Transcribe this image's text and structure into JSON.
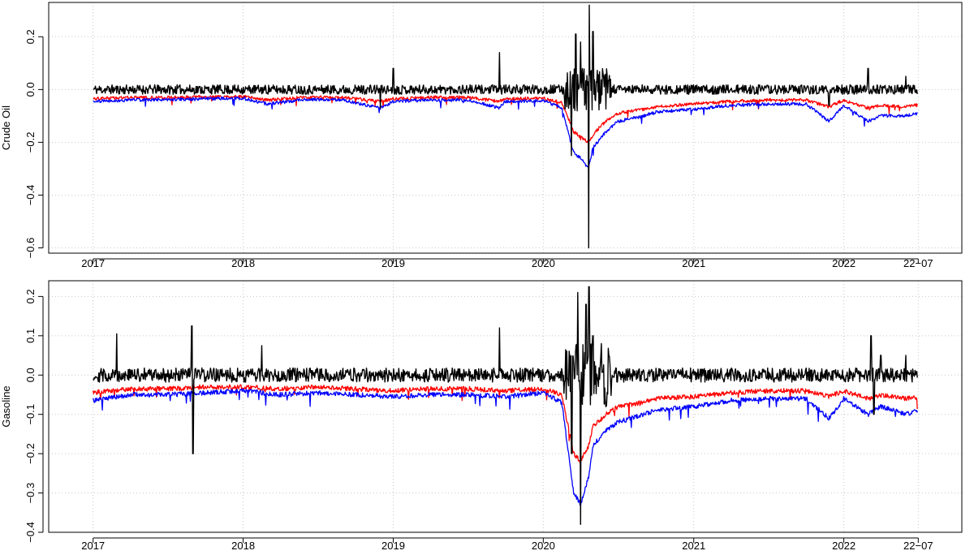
{
  "chart_data": [
    {
      "type": "line",
      "title": "",
      "ylabel": "Crude Oil",
      "xlabel": "",
      "ylim": [
        -0.62,
        0.33
      ],
      "xlim": [
        "2016-09-15",
        "2022-10-15"
      ],
      "y_ticks": [
        -0.6,
        -0.4,
        -0.2,
        0.0,
        0.2
      ],
      "y_tick_labels": [
        "−0.6",
        "−0.4",
        "−0.2",
        "0.0",
        "0.2"
      ],
      "x_ticks": [
        "2017-01-01",
        "2018-01-01",
        "2019-01-01",
        "2020-01-01",
        "2021-01-01",
        "2022-01-01",
        "2022-07-01"
      ],
      "x_tick_labels": [
        "2017",
        "2018",
        "2019",
        "2020",
        "2021",
        "2022",
        "22−07"
      ],
      "grid": true,
      "series": [
        {
          "color": "#000000",
          "style": "returns",
          "x": [
            "2017-01-01",
            "2017-04-01",
            "2017-07-01",
            "2017-10-01",
            "2018-01-01",
            "2018-04-01",
            "2018-07-01",
            "2018-10-01",
            "2018-12-01",
            "2019-01-01",
            "2019-04-01",
            "2019-07-01",
            "2019-09-16",
            "2019-10-01",
            "2020-01-01",
            "2020-03-09",
            "2020-03-20",
            "2020-04-01",
            "2020-04-20",
            "2020-04-22",
            "2020-05-01",
            "2020-06-01",
            "2020-07-01",
            "2020-10-01",
            "2021-01-01",
            "2021-04-01",
            "2021-07-01",
            "2021-10-01",
            "2021-11-26",
            "2022-01-01",
            "2022-03-01",
            "2022-04-01",
            "2022-06-01",
            "2022-06-30"
          ],
          "y": [
            0.0,
            0.01,
            0.0,
            0.005,
            0.0,
            -0.01,
            0.01,
            -0.005,
            -0.07,
            0.08,
            0.0,
            0.01,
            0.14,
            0.0,
            0.0,
            -0.25,
            0.21,
            0.18,
            -0.6,
            0.32,
            0.22,
            0.0,
            0.0,
            0.01,
            0.0,
            0.005,
            0.0,
            0.0,
            -0.06,
            0.0,
            0.08,
            -0.04,
            0.05,
            0.02
          ]
        },
        {
          "color": "#ff0000",
          "style": "smooth",
          "x": [
            "2017-01-01",
            "2017-04-01",
            "2017-07-01",
            "2017-10-01",
            "2018-01-01",
            "2018-03-01",
            "2018-06-01",
            "2018-09-01",
            "2018-12-01",
            "2019-01-01",
            "2019-04-01",
            "2019-07-01",
            "2019-09-16",
            "2019-10-01",
            "2020-01-01",
            "2020-02-15",
            "2020-03-15",
            "2020-04-01",
            "2020-04-20",
            "2020-05-01",
            "2020-06-01",
            "2020-07-01",
            "2020-09-01",
            "2020-10-01",
            "2021-01-01",
            "2021-04-01",
            "2021-07-01",
            "2021-10-01",
            "2021-11-26",
            "2022-01-01",
            "2022-03-01",
            "2022-04-01",
            "2022-06-01",
            "2022-06-30"
          ],
          "y": [
            -0.035,
            -0.03,
            -0.03,
            -0.028,
            -0.027,
            -0.04,
            -0.03,
            -0.03,
            -0.045,
            -0.035,
            -0.03,
            -0.03,
            -0.045,
            -0.035,
            -0.033,
            -0.05,
            -0.16,
            -0.18,
            -0.2,
            -0.17,
            -0.12,
            -0.09,
            -0.075,
            -0.065,
            -0.055,
            -0.045,
            -0.04,
            -0.04,
            -0.065,
            -0.04,
            -0.07,
            -0.06,
            -0.065,
            -0.058
          ]
        },
        {
          "color": "#0000ff",
          "style": "smooth",
          "x": [
            "2017-01-01",
            "2017-04-01",
            "2017-07-01",
            "2017-10-01",
            "2018-01-01",
            "2018-03-01",
            "2018-06-01",
            "2018-09-01",
            "2018-12-01",
            "2019-01-01",
            "2019-04-01",
            "2019-07-01",
            "2019-09-16",
            "2019-10-01",
            "2020-01-01",
            "2020-02-15",
            "2020-03-15",
            "2020-04-01",
            "2020-04-20",
            "2020-05-01",
            "2020-06-01",
            "2020-07-01",
            "2020-09-01",
            "2020-10-01",
            "2021-01-01",
            "2021-04-01",
            "2021-07-01",
            "2021-10-01",
            "2021-11-26",
            "2022-01-01",
            "2022-03-01",
            "2022-04-01",
            "2022-06-01",
            "2022-06-30"
          ],
          "y": [
            -0.045,
            -0.04,
            -0.038,
            -0.035,
            -0.033,
            -0.055,
            -0.038,
            -0.04,
            -0.07,
            -0.045,
            -0.04,
            -0.04,
            -0.07,
            -0.045,
            -0.042,
            -0.07,
            -0.24,
            -0.26,
            -0.3,
            -0.22,
            -0.16,
            -0.12,
            -0.1,
            -0.085,
            -0.075,
            -0.06,
            -0.055,
            -0.055,
            -0.12,
            -0.06,
            -0.12,
            -0.1,
            -0.1,
            -0.09
          ]
        }
      ]
    },
    {
      "type": "line",
      "title": "",
      "ylabel": "Gasoline",
      "xlabel": "",
      "ylim": [
        -0.4,
        0.24
      ],
      "xlim": [
        "2016-09-15",
        "2022-10-15"
      ],
      "y_ticks": [
        -0.4,
        -0.3,
        -0.2,
        -0.1,
        0.0,
        0.1,
        0.2
      ],
      "y_tick_labels": [
        "−0.4",
        "−0.3",
        "−0.2",
        "−0.1",
        "0.0",
        "0.1",
        "0.2"
      ],
      "x_ticks": [
        "2017-01-01",
        "2018-01-01",
        "2019-01-01",
        "2020-01-01",
        "2021-01-01",
        "2022-01-01",
        "2022-07-01"
      ],
      "x_tick_labels": [
        "2017",
        "2018",
        "2019",
        "2020",
        "2021",
        "2022",
        "22−07"
      ],
      "grid": true,
      "series": [
        {
          "color": "#000000",
          "style": "returns",
          "x": [
            "2017-01-01",
            "2017-02-27",
            "2017-04-01",
            "2017-07-01",
            "2017-08-29",
            "2017-09-01",
            "2017-10-01",
            "2018-01-01",
            "2018-02-15",
            "2018-04-01",
            "2018-07-01",
            "2018-10-01",
            "2019-01-01",
            "2019-04-01",
            "2019-07-01",
            "2019-09-16",
            "2019-10-01",
            "2020-01-01",
            "2020-03-10",
            "2020-03-25",
            "2020-04-01",
            "2020-04-14",
            "2020-04-21",
            "2020-05-01",
            "2020-06-01",
            "2020-07-01",
            "2020-10-01",
            "2021-01-01",
            "2021-04-01",
            "2021-07-01",
            "2021-10-01",
            "2021-11-26",
            "2022-01-01",
            "2022-03-08",
            "2022-03-15",
            "2022-04-01",
            "2022-06-01",
            "2022-06-30"
          ],
          "y": [
            0.0,
            0.105,
            0.0,
            0.01,
            0.125,
            -0.2,
            0.0,
            0.0,
            0.075,
            0.0,
            0.01,
            0.0,
            0.0,
            0.01,
            0.0,
            0.12,
            0.0,
            0.0,
            -0.2,
            0.21,
            -0.38,
            0.18,
            0.225,
            0.1,
            0.0,
            0.0,
            0.01,
            0.0,
            0.005,
            0.0,
            0.0,
            -0.03,
            0.0,
            0.1,
            -0.1,
            0.05,
            0.05,
            0.02
          ]
        },
        {
          "color": "#ff0000",
          "style": "smooth",
          "x": [
            "2017-01-01",
            "2017-04-01",
            "2017-07-01",
            "2017-10-01",
            "2018-01-01",
            "2018-04-01",
            "2018-07-01",
            "2018-10-01",
            "2019-01-01",
            "2019-04-01",
            "2019-07-01",
            "2019-10-01",
            "2020-01-01",
            "2020-02-15",
            "2020-03-15",
            "2020-04-01",
            "2020-04-20",
            "2020-05-01",
            "2020-06-01",
            "2020-07-01",
            "2020-09-01",
            "2020-10-01",
            "2021-01-01",
            "2021-04-01",
            "2021-07-01",
            "2021-10-01",
            "2021-11-26",
            "2022-01-01",
            "2022-03-01",
            "2022-04-01",
            "2022-06-01",
            "2022-06-30"
          ],
          "y": [
            -0.045,
            -0.035,
            -0.035,
            -0.03,
            -0.03,
            -0.035,
            -0.03,
            -0.035,
            -0.04,
            -0.035,
            -0.035,
            -0.04,
            -0.035,
            -0.05,
            -0.2,
            -0.22,
            -0.18,
            -0.13,
            -0.1,
            -0.08,
            -0.07,
            -0.06,
            -0.055,
            -0.045,
            -0.04,
            -0.04,
            -0.055,
            -0.04,
            -0.06,
            -0.05,
            -0.06,
            -0.055
          ]
        },
        {
          "color": "#0000ff",
          "style": "smooth",
          "x": [
            "2017-01-01",
            "2017-04-01",
            "2017-07-01",
            "2017-10-01",
            "2018-01-01",
            "2018-04-01",
            "2018-07-01",
            "2018-10-01",
            "2019-01-01",
            "2019-04-01",
            "2019-07-01",
            "2019-10-01",
            "2020-01-01",
            "2020-02-15",
            "2020-03-15",
            "2020-04-01",
            "2020-04-20",
            "2020-05-01",
            "2020-06-01",
            "2020-07-01",
            "2020-09-01",
            "2020-10-01",
            "2021-01-01",
            "2021-04-01",
            "2021-07-01",
            "2021-10-01",
            "2021-11-26",
            "2022-01-01",
            "2022-03-01",
            "2022-04-01",
            "2022-06-01",
            "2022-06-30"
          ],
          "y": [
            -0.065,
            -0.05,
            -0.05,
            -0.045,
            -0.04,
            -0.05,
            -0.045,
            -0.05,
            -0.055,
            -0.05,
            -0.05,
            -0.055,
            -0.045,
            -0.07,
            -0.3,
            -0.33,
            -0.26,
            -0.18,
            -0.14,
            -0.12,
            -0.1,
            -0.09,
            -0.08,
            -0.065,
            -0.06,
            -0.06,
            -0.11,
            -0.06,
            -0.1,
            -0.08,
            -0.1,
            -0.09
          ]
        }
      ]
    }
  ]
}
